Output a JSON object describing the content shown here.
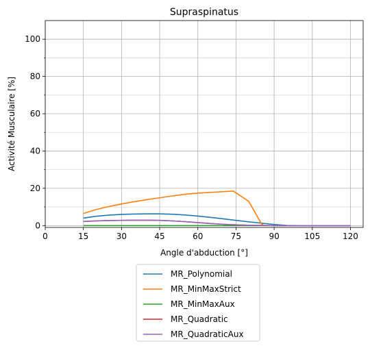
{
  "chart_data": {
    "type": "line",
    "title": "Supraspinatus",
    "xlabel": "Angle d'abduction [°]",
    "ylabel": "Activité Musculaire [%]",
    "xlim": [
      0,
      125
    ],
    "ylim": [
      -1,
      110
    ],
    "xticks": [
      0,
      15,
      30,
      45,
      60,
      75,
      90,
      105,
      120
    ],
    "yticks": [
      0,
      20,
      40,
      60,
      80,
      100
    ],
    "yminor": [
      10,
      30,
      50,
      70,
      90
    ],
    "grid": true,
    "legend_position": "below",
    "series": [
      {
        "name": "MR_Polynomial",
        "color": "#1f77b4",
        "x": [
          15,
          20,
          25,
          30,
          35,
          40,
          45,
          50,
          55,
          60,
          65,
          70,
          75,
          80,
          85,
          90,
          95,
          100,
          105,
          110,
          115,
          120
        ],
        "y": [
          4.0,
          5.0,
          5.6,
          6.0,
          6.2,
          6.3,
          6.3,
          6.1,
          5.7,
          5.1,
          4.4,
          3.6,
          2.8,
          2.0,
          1.3,
          0.6,
          0.1,
          0,
          0,
          0,
          0,
          0
        ]
      },
      {
        "name": "MR_MinMaxStrict",
        "color": "#ff7f0e",
        "x": [
          15,
          20,
          25,
          30,
          35,
          40,
          45,
          50,
          55,
          60,
          65,
          70,
          74,
          80,
          85,
          86,
          90,
          95,
          100,
          105,
          110,
          115,
          120
        ],
        "y": [
          6.5,
          8.6,
          10.2,
          11.6,
          12.8,
          13.9,
          14.9,
          15.9,
          16.8,
          17.4,
          17.8,
          18.2,
          18.5,
          13.0,
          1.0,
          0,
          0,
          0,
          0,
          0,
          0,
          0,
          0
        ]
      },
      {
        "name": "MR_MinMaxAux",
        "color": "#2ca02c",
        "x": [
          15,
          120
        ],
        "y": [
          0,
          0
        ]
      },
      {
        "name": "MR_Quadratic",
        "color": "#d62728",
        "x": [
          15,
          20,
          25,
          30,
          35,
          40,
          45,
          50,
          55,
          60,
          65,
          70,
          75,
          80,
          85,
          90,
          95,
          100,
          105,
          110,
          115,
          120
        ],
        "y": [
          2.2,
          2.5,
          2.7,
          2.8,
          2.9,
          2.9,
          2.8,
          2.5,
          2.1,
          1.6,
          1.1,
          0.7,
          0.4,
          0.2,
          0.1,
          0,
          0,
          0,
          0,
          0,
          0,
          0
        ]
      },
      {
        "name": "MR_QuadraticAux",
        "color": "#9467bd",
        "x": [
          15,
          20,
          25,
          30,
          35,
          40,
          45,
          50,
          55,
          60,
          65,
          70,
          75,
          80,
          85,
          90,
          95,
          100,
          105,
          110,
          115,
          120
        ],
        "y": [
          2.2,
          2.5,
          2.7,
          2.8,
          2.9,
          2.9,
          2.8,
          2.5,
          2.1,
          1.6,
          1.1,
          0.7,
          0.4,
          0.2,
          0.1,
          0,
          0,
          0,
          0,
          0,
          0,
          0
        ]
      }
    ]
  }
}
